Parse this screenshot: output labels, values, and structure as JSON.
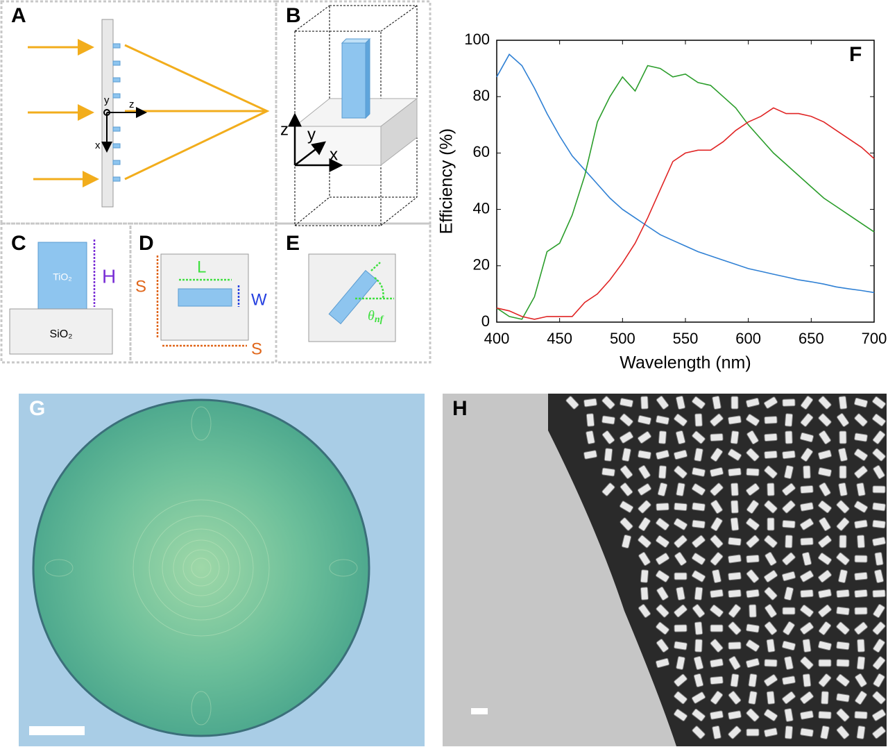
{
  "panels": {
    "a": {
      "label": "A",
      "axis_y": "y",
      "axis_z": "z",
      "axis_x": "x"
    },
    "b": {
      "label": "B",
      "axis_z": "z",
      "axis_y": "y",
      "axis_x": "x"
    },
    "c": {
      "label": "C",
      "pillar": "TiO₂",
      "substrate": "SiO₂",
      "height": "H"
    },
    "d": {
      "label": "D",
      "length": "L",
      "width": "W",
      "period_x": "S",
      "period_y": "S"
    },
    "e": {
      "label": "E",
      "angle": "θ",
      "angle_sub": "nf"
    },
    "g": {
      "label": "G"
    },
    "h": {
      "label": "H"
    }
  },
  "chart_data": {
    "type": "line",
    "panel_label": "F",
    "x_label": "Wavelength (nm)",
    "y_label": "Efficiency (%)",
    "x": [
      400,
      410,
      420,
      430,
      440,
      450,
      460,
      470,
      480,
      490,
      500,
      510,
      520,
      530,
      540,
      550,
      560,
      570,
      580,
      590,
      600,
      610,
      620,
      630,
      640,
      650,
      660,
      670,
      680,
      690,
      700
    ],
    "series": [
      {
        "color": "#2f80d4",
        "values": [
          87,
          95,
          91,
          83,
          74,
          66,
          59,
          54,
          49,
          44,
          40,
          37,
          34,
          31,
          29,
          27,
          25,
          23.5,
          22,
          20.5,
          19,
          18,
          17,
          16,
          15,
          14.3,
          13.5,
          12.5,
          11.8,
          11.2,
          10.5
        ]
      },
      {
        "color": "#2a9d2a",
        "values": [
          5,
          2,
          1,
          9,
          25,
          28,
          38,
          52,
          71,
          80,
          87,
          82,
          91,
          90,
          87,
          88,
          85,
          84,
          80,
          76,
          70,
          65,
          60,
          56,
          52,
          48,
          44,
          41,
          38,
          35,
          32
        ]
      },
      {
        "color": "#e02424",
        "values": [
          5,
          4,
          2,
          1,
          2,
          2,
          2,
          7,
          10,
          15,
          21,
          28,
          37,
          47,
          57,
          60,
          61,
          61,
          64,
          68,
          71,
          73,
          76,
          74,
          74,
          73,
          71,
          68,
          65,
          62,
          58
        ]
      }
    ],
    "xlim": [
      400,
      700
    ],
    "xticks": [
      400,
      450,
      500,
      550,
      600,
      650,
      700
    ],
    "ylim": [
      0,
      100
    ],
    "yticks": [
      0,
      20,
      40,
      60,
      80,
      100
    ]
  }
}
